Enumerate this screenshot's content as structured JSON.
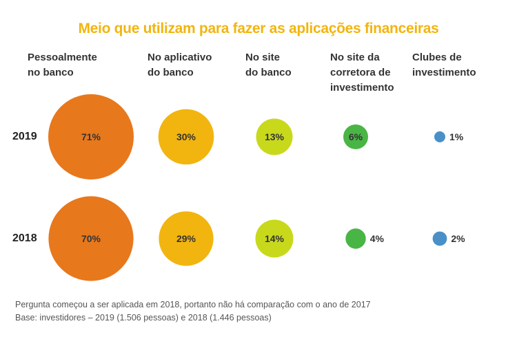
{
  "chart_data": {
    "type": "bubble",
    "title": "Meio que utilizam para fazer as aplicações financeiras",
    "categories": [
      "Pessoalmente\nno banco",
      "No aplicativo\ndo banco",
      "No site\ndo banco",
      "No site da\ncorretora de\ninvestimento",
      "Clubes de\ninvestimento"
    ],
    "series": [
      {
        "name": "2019",
        "values": [
          71,
          30,
          13,
          6,
          1
        ],
        "labels": [
          "71%",
          "30%",
          "13%",
          "6%",
          "1%"
        ]
      },
      {
        "name": "2018",
        "values": [
          70,
          29,
          14,
          4,
          2
        ],
        "labels": [
          "70%",
          "29%",
          "14%",
          "4%",
          "2%"
        ]
      }
    ],
    "colors": [
      "#e8781c",
      "#f2b50f",
      "#c8d91c",
      "#49b545",
      "#4a90c8"
    ],
    "title_color": "#f2b50f"
  },
  "footnotes": [
    "Pergunta começou a ser aplicada em 2018, portanto não há comparação com o ano de 2017",
    "Base: investidores – 2019 (1.506 pessoas) e 2018 (1.446 pessoas)"
  ]
}
